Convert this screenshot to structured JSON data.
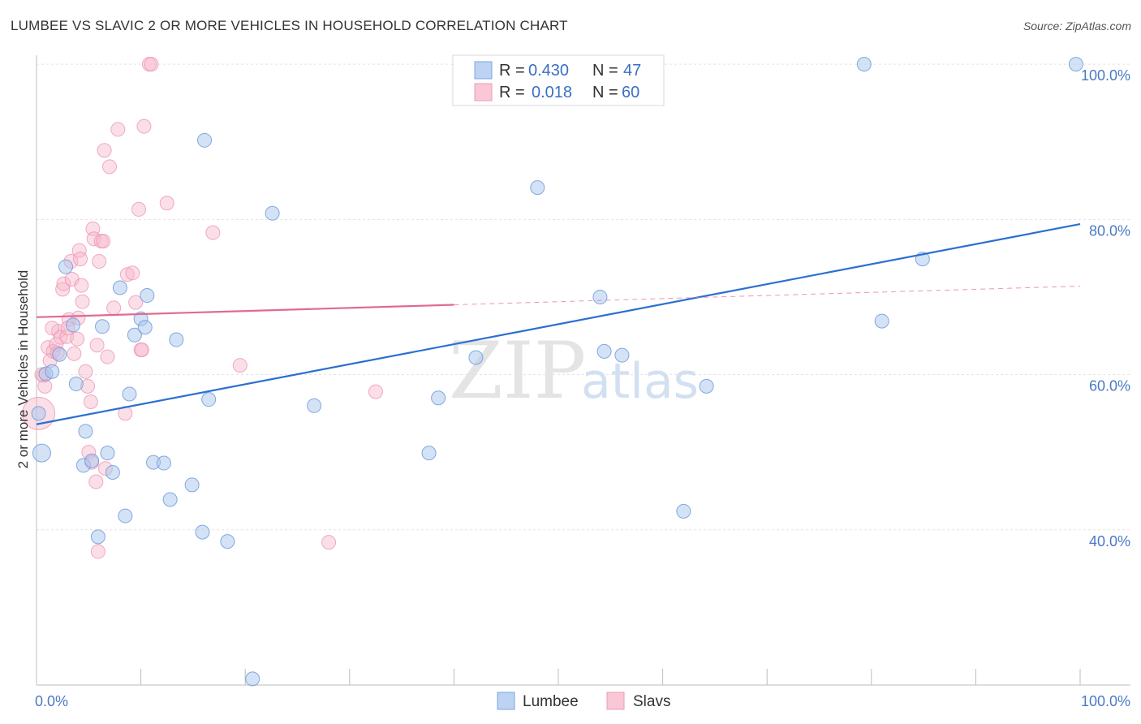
{
  "title": "LUMBEE VS SLAVIC 2 OR MORE VEHICLES IN HOUSEHOLD CORRELATION CHART",
  "source": "Source: ZipAtlas.com",
  "watermark": {
    "zip": "ZIP",
    "atlas": "atlas"
  },
  "legend": {
    "r_label": "R =",
    "n_label": "N =",
    "rows": [
      {
        "series": "Lumbee",
        "r": "0.430",
        "n": "47"
      },
      {
        "series": "Slavs",
        "r": "0.018",
        "n": "60"
      }
    ]
  },
  "chart_data": {
    "type": "scatter",
    "title": "LUMBEE VS SLAVIC 2 OR MORE VEHICLES IN HOUSEHOLD CORRELATION CHART",
    "xlabel": "",
    "ylabel": "2 or more Vehicles in Household",
    "xlim": [
      0,
      100
    ],
    "ylim": [
      20,
      102
    ],
    "x_ticks": [
      "0.0%",
      "100.0%"
    ],
    "y_ticks": [
      {
        "value": 40,
        "label": "40.0%"
      },
      {
        "value": 60,
        "label": "60.0%"
      },
      {
        "value": 80,
        "label": "80.0%"
      },
      {
        "value": 100,
        "label": "100.0%"
      }
    ],
    "colors": {
      "Lumbee": "#8fb4e8",
      "Slavs": "#f2a3bd",
      "lumbee_line": "#2c6fd0",
      "slavs_line": "#e06a90"
    },
    "series": [
      {
        "name": "Lumbee",
        "trend": {
          "x0": 0,
          "y0": 53.6,
          "x1": 100,
          "y1": 79.4
        },
        "points": [
          [
            0.5,
            49.9
          ],
          [
            0.9,
            60.1
          ],
          [
            1.5,
            60.4
          ],
          [
            2.2,
            62.6
          ],
          [
            2.8,
            73.9
          ],
          [
            3.5,
            66.4
          ],
          [
            3.8,
            58.8
          ],
          [
            4.7,
            52.7
          ],
          [
            4.5,
            48.3
          ],
          [
            5.3,
            48.9
          ],
          [
            5.9,
            39.1
          ],
          [
            6.3,
            66.2
          ],
          [
            6.8,
            49.9
          ],
          [
            7.3,
            47.4
          ],
          [
            8.0,
            71.2
          ],
          [
            8.5,
            41.8
          ],
          [
            8.9,
            57.5
          ],
          [
            9.4,
            65.1
          ],
          [
            10.0,
            67.2
          ],
          [
            10.4,
            66.1
          ],
          [
            10.6,
            70.2
          ],
          [
            11.2,
            48.7
          ],
          [
            12.2,
            48.6
          ],
          [
            12.8,
            43.9
          ],
          [
            13.4,
            64.5
          ],
          [
            14.9,
            45.8
          ],
          [
            15.9,
            39.7
          ],
          [
            16.1,
            90.2
          ],
          [
            16.5,
            56.8
          ],
          [
            18.3,
            38.5
          ],
          [
            20.7,
            20.8
          ],
          [
            22.6,
            80.8
          ],
          [
            26.6,
            56.0
          ],
          [
            37.6,
            49.9
          ],
          [
            38.5,
            57.0
          ],
          [
            42.1,
            62.2
          ],
          [
            48.0,
            84.1
          ],
          [
            54.0,
            70.0
          ],
          [
            54.4,
            63.0
          ],
          [
            56.1,
            62.5
          ],
          [
            62.0,
            42.4
          ],
          [
            64.2,
            58.5
          ],
          [
            79.3,
            100.0
          ],
          [
            81.0,
            66.9
          ],
          [
            84.9,
            74.9
          ],
          [
            99.6,
            100.0
          ],
          [
            0.2,
            55.0
          ]
        ]
      },
      {
        "name": "Slavs",
        "trend_solid": {
          "x0": 0,
          "y0": 67.4,
          "x1": 40,
          "y1": 69.0
        },
        "trend_dashed": {
          "x0": 40,
          "y0": 69.0,
          "x1": 100,
          "y1": 71.4
        },
        "points": [
          [
            0.2,
            55.0
          ],
          [
            0.7,
            59.9
          ],
          [
            0.8,
            58.5
          ],
          [
            1.1,
            63.5
          ],
          [
            1.3,
            61.8
          ],
          [
            1.6,
            63.0
          ],
          [
            1.9,
            63.9
          ],
          [
            2.1,
            65.6
          ],
          [
            2.3,
            64.8
          ],
          [
            2.5,
            71.0
          ],
          [
            2.6,
            71.7
          ],
          [
            2.9,
            64.9
          ],
          [
            3.1,
            67.1
          ],
          [
            3.3,
            74.6
          ],
          [
            3.4,
            72.3
          ],
          [
            3.6,
            62.7
          ],
          [
            3.9,
            64.6
          ],
          [
            4.0,
            67.3
          ],
          [
            4.1,
            76.0
          ],
          [
            4.2,
            74.9
          ],
          [
            4.3,
            71.5
          ],
          [
            4.4,
            69.4
          ],
          [
            4.9,
            58.5
          ],
          [
            5.0,
            50.0
          ],
          [
            5.2,
            56.5
          ],
          [
            5.3,
            48.7
          ],
          [
            5.4,
            78.8
          ],
          [
            5.5,
            77.5
          ],
          [
            5.7,
            46.2
          ],
          [
            5.8,
            63.8
          ],
          [
            5.9,
            37.2
          ],
          [
            6.0,
            74.6
          ],
          [
            6.2,
            77.2
          ],
          [
            6.4,
            77.2
          ],
          [
            6.5,
            88.9
          ],
          [
            6.6,
            47.9
          ],
          [
            6.8,
            62.3
          ],
          [
            7.0,
            86.8
          ],
          [
            7.4,
            68.6
          ],
          [
            7.8,
            91.6
          ],
          [
            8.5,
            55.0
          ],
          [
            8.7,
            72.9
          ],
          [
            9.2,
            73.1
          ],
          [
            9.5,
            69.3
          ],
          [
            9.8,
            81.3
          ],
          [
            10.0,
            63.2
          ],
          [
            10.1,
            63.2
          ],
          [
            10.3,
            92.0
          ],
          [
            10.8,
            100.0
          ],
          [
            11.0,
            100.0
          ],
          [
            12.5,
            82.1
          ],
          [
            16.9,
            78.3
          ],
          [
            19.5,
            61.2
          ],
          [
            28.0,
            38.4
          ],
          [
            32.5,
            57.8
          ],
          [
            0.5,
            60.0
          ],
          [
            1.5,
            66.0
          ],
          [
            2.0,
            62.8
          ],
          [
            3.0,
            66.0
          ],
          [
            4.7,
            60.4
          ]
        ]
      }
    ]
  },
  "bottom_legend": [
    {
      "label": "Lumbee",
      "color": "#bcd3f3",
      "border": "#7fa6de"
    },
    {
      "label": "Slavs",
      "color": "#f9c7d6",
      "border": "#ee9bb6"
    }
  ]
}
